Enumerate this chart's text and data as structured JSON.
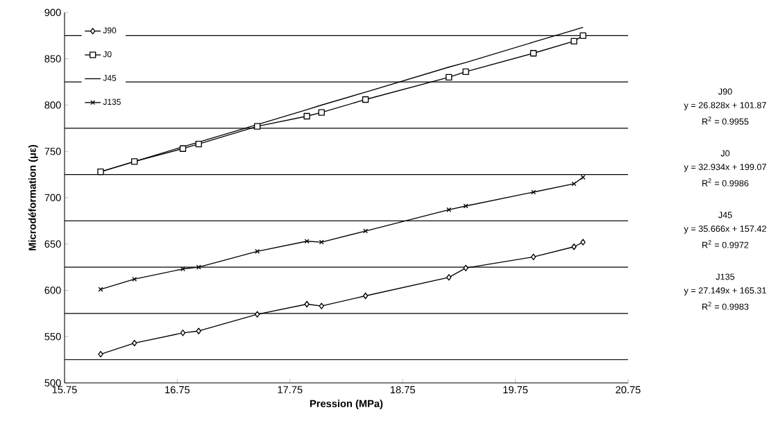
{
  "chart_data": {
    "type": "line",
    "xlabel": "Pression (MPa)",
    "ylabel": "Microdéformation (με)",
    "xlim": [
      15.75,
      20.75
    ],
    "xticks": [
      15.75,
      16.75,
      17.75,
      18.75,
      19.75,
      20.75
    ],
    "ylim": [
      500,
      900
    ],
    "yticks": [
      500,
      550,
      600,
      650,
      700,
      750,
      800,
      850,
      900
    ],
    "legend": "top left",
    "x": [
      16.07,
      16.37,
      16.8,
      16.94,
      17.46,
      17.9,
      18.03,
      18.42,
      19.16,
      19.31,
      19.91,
      20.27,
      20.35
    ],
    "series": [
      {
        "name": "J90",
        "color": "#000000",
        "marker": "diamond",
        "values": [
          531,
          543,
          554,
          556,
          574,
          585,
          583,
          594,
          614,
          624,
          636,
          647,
          652
        ]
      },
      {
        "name": "J0",
        "color": "#000000",
        "marker": "square",
        "values": [
          728,
          739,
          753,
          758,
          777,
          788,
          792,
          806,
          830,
          836,
          856,
          869,
          875
        ]
      },
      {
        "name": "J45",
        "color": "#000000",
        "marker": "none",
        "values": [
          728,
          739,
          755,
          760,
          779,
          795,
          800,
          814,
          841,
          846,
          868,
          881,
          884
        ]
      },
      {
        "name": "J135",
        "color": "#000000",
        "marker": "cross",
        "values": [
          601,
          612,
          623,
          625,
          642,
          653,
          652,
          664,
          687,
          691,
          706,
          715,
          722
        ]
      }
    ],
    "ref_lines": [
      {
        "axis": "y",
        "value": 525,
        "color": "#000000"
      },
      {
        "axis": "y",
        "value": 575,
        "color": "#000000"
      },
      {
        "axis": "y",
        "value": 625,
        "color": "#000000"
      },
      {
        "axis": "y",
        "value": 675,
        "color": "#000000"
      },
      {
        "axis": "y",
        "value": 725,
        "color": "#000000"
      },
      {
        "axis": "y",
        "value": 775,
        "color": "#000000"
      },
      {
        "axis": "y",
        "value": 825,
        "color": "#000000"
      },
      {
        "axis": "y",
        "value": 875,
        "color": "#000000"
      }
    ],
    "annotations": [
      "J90",
      "y = 26.828x + 101.87",
      "R$^{2}$ = 0.9955",
      "J0",
      "y = 32.934x + 199.07",
      "R$^{2}$ = 0.9986",
      "J45",
      "y = 35.666x + 157.42",
      "R$^{2}$ = 0.9972",
      "J135",
      "y = 27.149x + 165.31",
      "R$^{2}$ = 0.9983"
    ]
  }
}
